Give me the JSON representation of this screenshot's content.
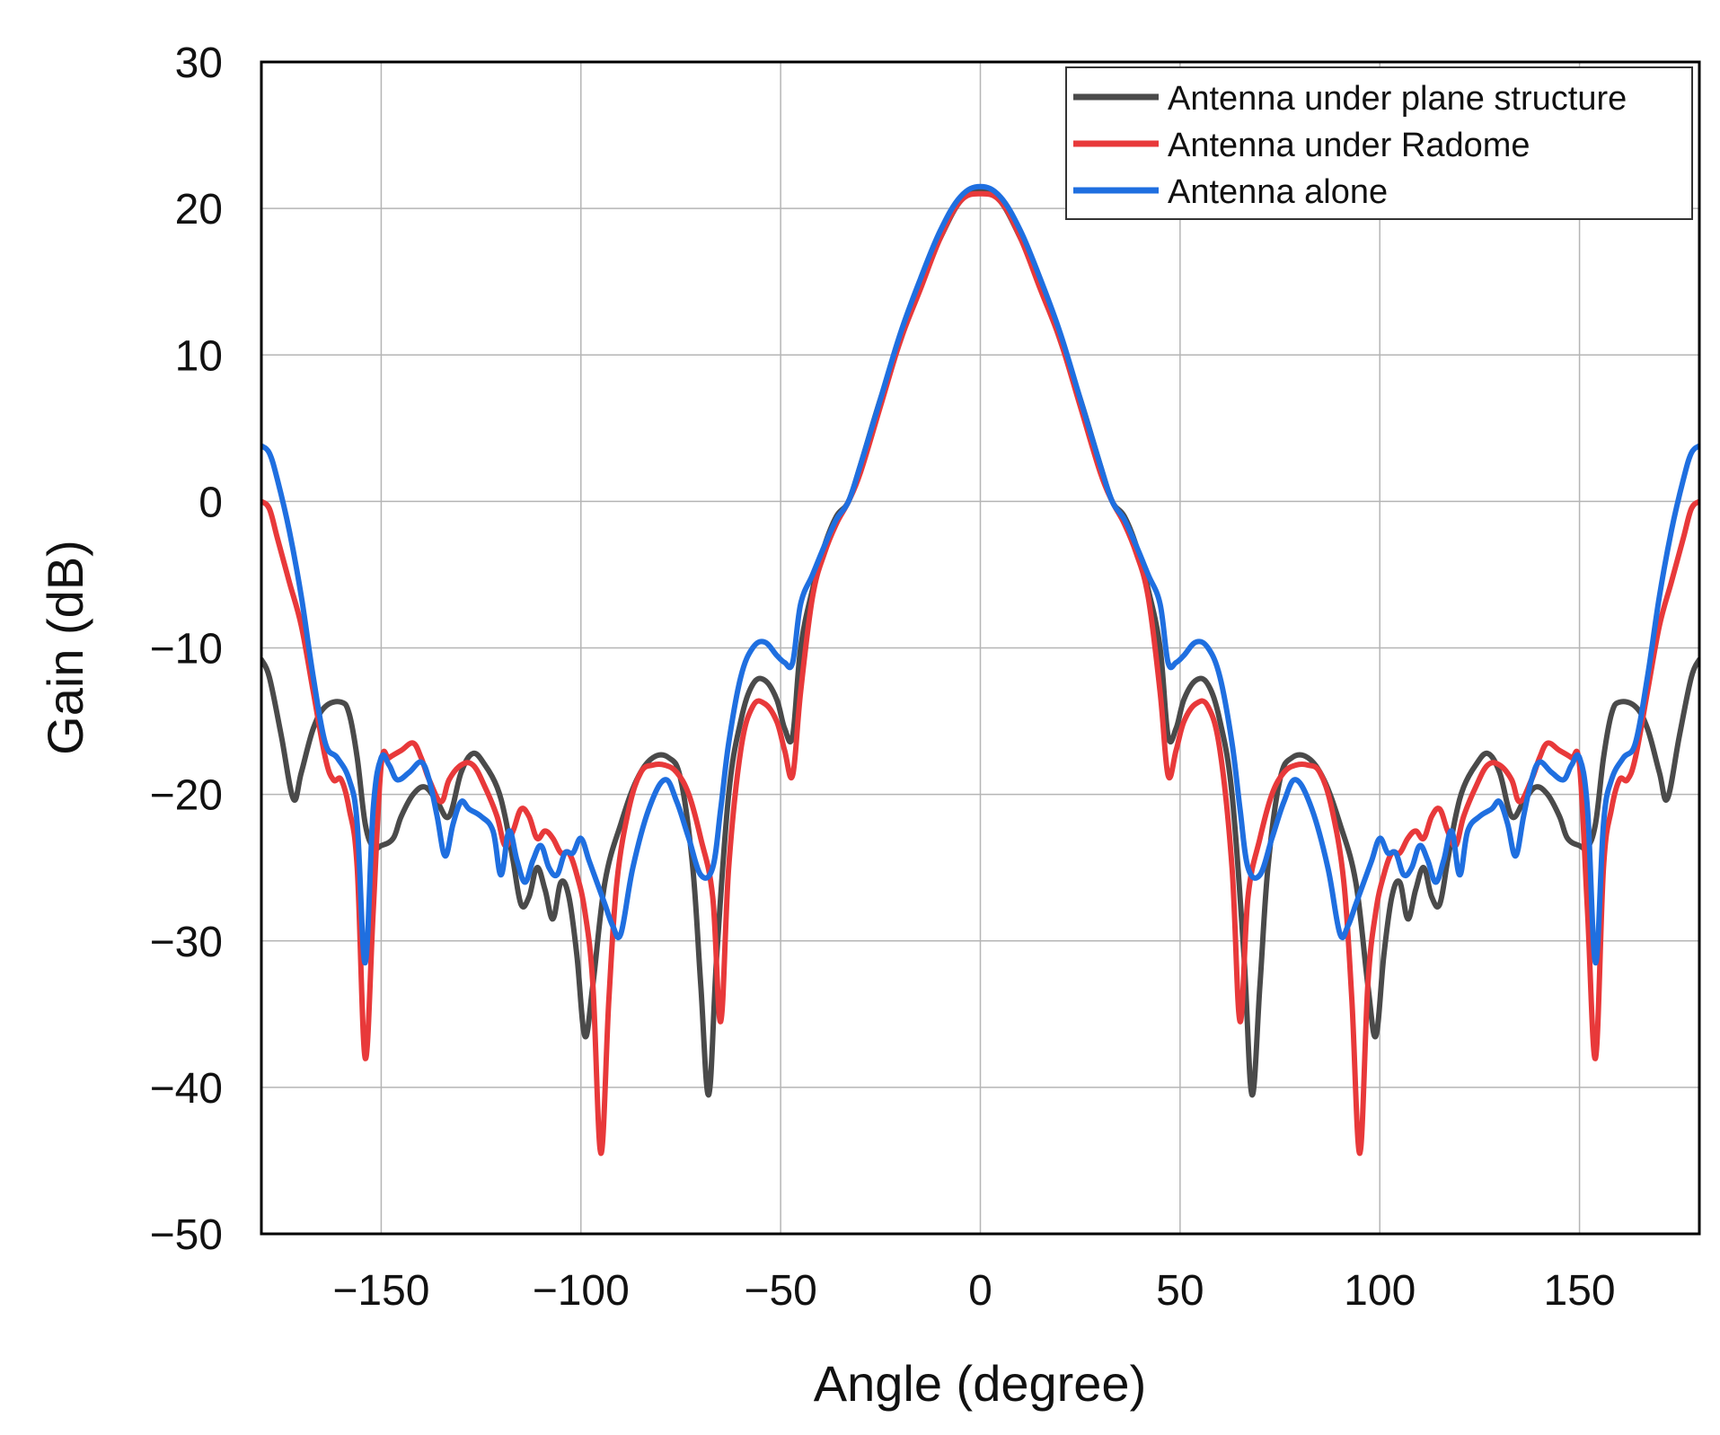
{
  "chart_data": {
    "type": "line",
    "xlabel": "Angle (degree)",
    "ylabel": "Gain (dB)",
    "xlim": [
      -180,
      180
    ],
    "ylim": [
      -50,
      30
    ],
    "xticks": [
      -150,
      -100,
      -50,
      0,
      50,
      100,
      150
    ],
    "xtick_labels": [
      "−150",
      "−100",
      "−50",
      "0",
      "50",
      "100",
      "150"
    ],
    "yticks": [
      -50,
      -40,
      -30,
      -20,
      -10,
      0,
      10,
      20,
      30
    ],
    "ytick_labels": [
      "−50",
      "−40",
      "−30",
      "−20",
      "−10",
      "0",
      "10",
      "20",
      "30"
    ],
    "grid": true,
    "legend_position": "top-right",
    "symmetric_about_zero": true,
    "series": [
      {
        "name": "Antenna under plane structure",
        "color": "#4a4a4a",
        "x": [
          -180,
          -178,
          -175,
          -172,
          -170,
          -167,
          -164,
          -160,
          -158,
          -156,
          -154,
          -152,
          -150,
          -147,
          -145,
          -142,
          -139,
          -136,
          -133,
          -130,
          -127,
          -124,
          -121,
          -119,
          -117,
          -115,
          -113,
          -111,
          -109,
          -107,
          -105,
          -103,
          -101,
          -99,
          -97,
          -94,
          -90,
          -86,
          -82,
          -78,
          -75,
          -72,
          -70,
          -68,
          -66,
          -63,
          -60,
          -57,
          -54,
          -51,
          -49,
          -47,
          -45,
          -42,
          -39,
          -36,
          -33,
          -30,
          -25,
          -20,
          -15,
          -10,
          -5,
          0
        ],
        "values": [
          -10.8,
          -12,
          -16,
          -20.3,
          -18.5,
          -15.5,
          -14,
          -13.7,
          -14.5,
          -17.5,
          -22,
          -23.6,
          -23.5,
          -23,
          -21.5,
          -20,
          -19.5,
          -20.5,
          -21.5,
          -18.5,
          -17.2,
          -18,
          -19.5,
          -21.5,
          -24.5,
          -27.5,
          -27,
          -25,
          -26.5,
          -28.5,
          -26,
          -27,
          -31,
          -36.5,
          -33,
          -26,
          -22,
          -19,
          -17.5,
          -17.5,
          -19,
          -25,
          -33,
          -40.5,
          -31,
          -20,
          -15,
          -12.5,
          -12.2,
          -13.5,
          -15.5,
          -16,
          -10,
          -6,
          -3,
          -1,
          0,
          2.5,
          7,
          11,
          15,
          18,
          20.5,
          21.3
        ]
      },
      {
        "name": "Antenna under Radome",
        "color": "#e8393a",
        "x": [
          -180,
          -178,
          -176,
          -173,
          -170,
          -167,
          -164,
          -162,
          -160,
          -158,
          -156,
          -154,
          -152,
          -150,
          -148,
          -145,
          -142,
          -140,
          -138,
          -135,
          -133,
          -130,
          -127,
          -124,
          -121,
          -119,
          -117,
          -115,
          -113,
          -111,
          -109,
          -107,
          -105,
          -103,
          -101,
          -99,
          -97,
          -95,
          -93,
          -91,
          -88,
          -85,
          -82,
          -79,
          -76,
          -73,
          -70,
          -67,
          -65,
          -63,
          -60,
          -57,
          -54,
          -51,
          -49,
          -47,
          -45,
          -42,
          -39,
          -36,
          -33,
          -30,
          -25,
          -20,
          -15,
          -10,
          -5,
          0
        ],
        "values": [
          0,
          -0.5,
          -2.5,
          -5.5,
          -8.5,
          -13,
          -17.5,
          -19,
          -19,
          -21,
          -25,
          -38,
          -28,
          -18,
          -17.5,
          -17,
          -16.5,
          -17.5,
          -19,
          -20.5,
          -19,
          -18,
          -18,
          -19.5,
          -21.5,
          -23.5,
          -22.5,
          -21,
          -21.5,
          -23,
          -22.5,
          -23,
          -24,
          -24,
          -25.5,
          -28,
          -33,
          -44.5,
          -34,
          -26,
          -21,
          -18.5,
          -18,
          -18,
          -18.5,
          -20,
          -23,
          -27,
          -35.5,
          -25,
          -17,
          -14,
          -13.8,
          -15,
          -17,
          -18.7,
          -13,
          -6.5,
          -3.5,
          -1.5,
          0,
          2,
          6.5,
          11,
          14.5,
          18,
          20.5,
          21
        ]
      },
      {
        "name": "Antenna alone",
        "color": "#1f6fe0",
        "x": [
          -180,
          -178,
          -176,
          -173,
          -170,
          -167,
          -164,
          -161,
          -158,
          -156,
          -154,
          -152,
          -150,
          -148,
          -146,
          -143,
          -140,
          -138,
          -136,
          -134,
          -132,
          -130,
          -128,
          -125,
          -122,
          -120,
          -118,
          -116,
          -114,
          -112,
          -110,
          -108,
          -106,
          -104,
          -102,
          -100,
          -98,
          -96,
          -94,
          -92,
          -90,
          -87,
          -83,
          -79,
          -76,
          -73,
          -70,
          -67,
          -65,
          -63,
          -60,
          -57,
          -54,
          -51,
          -49,
          -47,
          -45,
          -42,
          -39,
          -36,
          -33,
          -30,
          -25,
          -20,
          -15,
          -10,
          -5,
          0
        ],
        "values": [
          3.8,
          3.3,
          1.5,
          -2,
          -6.5,
          -12,
          -16.5,
          -17.5,
          -19,
          -22,
          -31.5,
          -21,
          -17.5,
          -18,
          -19,
          -18.5,
          -17.8,
          -19,
          -21.5,
          -24.2,
          -22,
          -20.5,
          -21,
          -21.5,
          -22.5,
          -25.5,
          -22.5,
          -24.5,
          -26,
          -24.5,
          -23.5,
          -25,
          -25.5,
          -24,
          -24,
          -23,
          -24.5,
          -26,
          -27.5,
          -29,
          -29.5,
          -25,
          -21,
          -19,
          -20.5,
          -23,
          -25.5,
          -25,
          -21,
          -16.5,
          -12,
          -10,
          -9.6,
          -10.5,
          -11,
          -11,
          -7,
          -5,
          -3,
          -1.2,
          0,
          2.5,
          7,
          11.5,
          15.2,
          18.5,
          20.8,
          21.5
        ]
      }
    ]
  }
}
